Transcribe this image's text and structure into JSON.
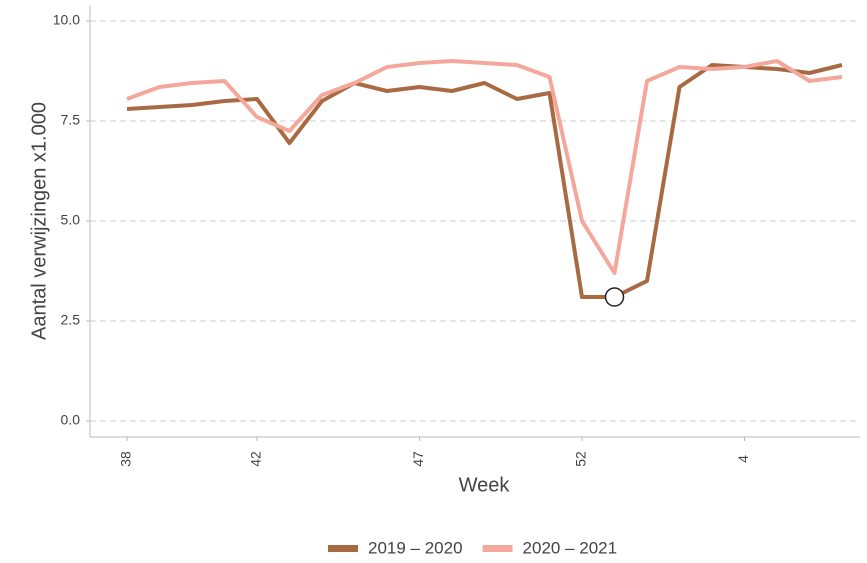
{
  "chart_data": {
    "type": "line",
    "x_label": "Week",
    "y_label": "Aantal verwijzingen x1.000",
    "categories": [
      "38",
      null,
      null,
      null,
      "42",
      null,
      null,
      null,
      null,
      "47",
      null,
      null,
      null,
      null,
      "52",
      null,
      null,
      null,
      null,
      "4",
      null,
      null,
      null
    ],
    "series": [
      {
        "name": "2019 – 2020",
        "color": "#a86a42",
        "values": [
          7.8,
          7.85,
          7.9,
          8.0,
          8.05,
          6.95,
          8.0,
          8.45,
          8.25,
          8.35,
          8.25,
          8.45,
          8.05,
          8.2,
          3.1,
          3.1,
          3.5,
          8.35,
          8.9,
          8.85,
          8.8,
          8.7,
          8.9
        ]
      },
      {
        "name": "2020 – 2021",
        "color": "#f4a89c",
        "values": [
          8.05,
          8.35,
          8.45,
          8.5,
          7.6,
          7.25,
          8.15,
          8.45,
          8.85,
          8.95,
          9.0,
          8.95,
          8.9,
          8.6,
          5.0,
          3.7,
          8.5,
          8.85,
          8.8,
          8.85,
          9.0,
          8.5,
          8.6
        ]
      }
    ],
    "ylim": [
      -0.4,
      10.4
    ],
    "yticks": [
      {
        "value": 0,
        "label": "0.0"
      },
      {
        "value": 2.5,
        "label": "2.5"
      },
      {
        "value": 5,
        "label": "5.0"
      },
      {
        "value": 7.5,
        "label": "7.5"
      },
      {
        "value": 10,
        "label": "10.0"
      }
    ],
    "grid": true,
    "legend": "bottom"
  }
}
